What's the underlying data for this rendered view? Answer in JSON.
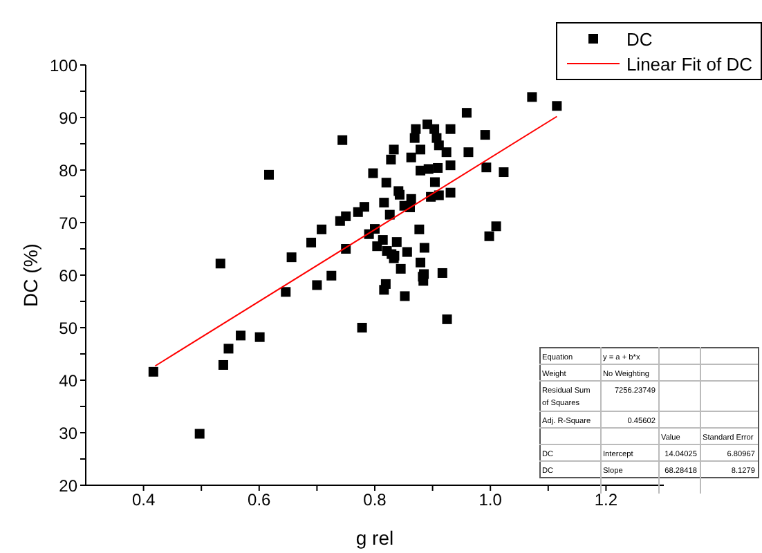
{
  "chart_data": {
    "type": "scatter",
    "xlabel": "g rel",
    "ylabel": "DC (%)",
    "xlim": [
      0.3,
      1.3
    ],
    "ylim": [
      20,
      100
    ],
    "xticks": [
      0.4,
      {
        "value": 0.5,
        "label": null
      },
      0.6,
      {
        "value": 0.7,
        "label": null
      },
      0.8,
      {
        "value": 0.9,
        "label": null
      },
      {
        "value": 1,
        "label": "1.0"
      },
      {
        "value": 1.1,
        "label": null
      },
      1.2
    ],
    "yticks": [
      20,
      {
        "value": 25,
        "label": null
      },
      30,
      {
        "value": 35,
        "label": null
      },
      40,
      {
        "value": 45,
        "label": null
      },
      50,
      {
        "value": 55,
        "label": null
      },
      60,
      {
        "value": 65,
        "label": null
      },
      70,
      {
        "value": 75,
        "label": null
      },
      80,
      {
        "value": 85,
        "label": null
      },
      90,
      {
        "value": 95,
        "label": null
      },
      100
    ],
    "grid": false,
    "legend": "top right",
    "series": [
      {
        "name": "DC",
        "marker": "square",
        "color": "#000000",
        "x": [
          0.744,
          0.617,
          0.533,
          0.417,
          0.497,
          0.538,
          0.547,
          0.568,
          0.601,
          0.646,
          0.656,
          0.7,
          0.725,
          0.69,
          0.708,
          0.74,
          0.75,
          0.75,
          0.771,
          0.782,
          0.778,
          0.797,
          0.8,
          0.79,
          0.804,
          0.82,
          0.816,
          0.826,
          0.814,
          0.838,
          0.821,
          0.833,
          0.856,
          0.845,
          0.819,
          0.816,
          0.852,
          0.828,
          0.833,
          0.841,
          0.843,
          0.851,
          0.863,
          0.861,
          0.877,
          0.879,
          0.883,
          0.884,
          0.886,
          0.869,
          0.871,
          0.863,
          0.879,
          0.879,
          1.072,
          1.115,
          0.959,
          0.931,
          0.991,
          0.891,
          0.903,
          0.907,
          0.911,
          0.924,
          0.962,
          0.893,
          0.909,
          0.931,
          0.993,
          1.023,
          0.904,
          0.897,
          0.911,
          0.931,
          1.01,
          0.998,
          0.885,
          0.917,
          0.925,
          0.834,
          0.829
        ],
        "values": [
          85.7,
          79.1,
          62.2,
          41.6,
          29.8,
          42.9,
          46.0,
          48.5,
          48.2,
          56.8,
          63.4,
          58.1,
          59.9,
          66.2,
          68.7,
          70.3,
          71.2,
          65.0,
          72.0,
          73.0,
          50.0,
          79.4,
          68.8,
          67.8,
          65.5,
          77.6,
          73.8,
          71.5,
          66.7,
          66.3,
          64.6,
          63.2,
          64.4,
          61.2,
          58.3,
          57.2,
          56.0,
          82.0,
          83.9,
          76.0,
          75.3,
          73.2,
          74.5,
          72.9,
          68.7,
          62.4,
          59.7,
          58.9,
          65.2,
          86.1,
          87.8,
          82.4,
          79.9,
          83.9,
          93.9,
          92.2,
          90.9,
          87.8,
          86.7,
          88.7,
          87.8,
          86.1,
          84.7,
          83.4,
          83.4,
          80.2,
          80.4,
          80.9,
          80.5,
          79.6,
          77.7,
          74.9,
          75.2,
          75.7,
          69.3,
          67.4,
          60.2,
          60.4,
          51.6,
          63.7,
          64.0
        ]
      },
      {
        "name": "Linear Fit of DC",
        "type": "line",
        "marker": "none",
        "color": "#ff0000",
        "line_style": "solid",
        "x": [
          0.42,
          1.115
        ],
        "values": [
          42.7,
          90.2
        ]
      }
    ],
    "annotations": [
      "Equation",
      "y = a + b*x",
      "Weight",
      "No Weighting",
      "Residual Sum of Squares",
      "7256.23749",
      "Adj. R-Square",
      "0.45602",
      "Value",
      "Standard Error",
      "DC",
      "Intercept",
      "14.04025",
      "6.80967",
      "DC",
      "Slope",
      "68.28418",
      "8.1279"
    ]
  }
}
